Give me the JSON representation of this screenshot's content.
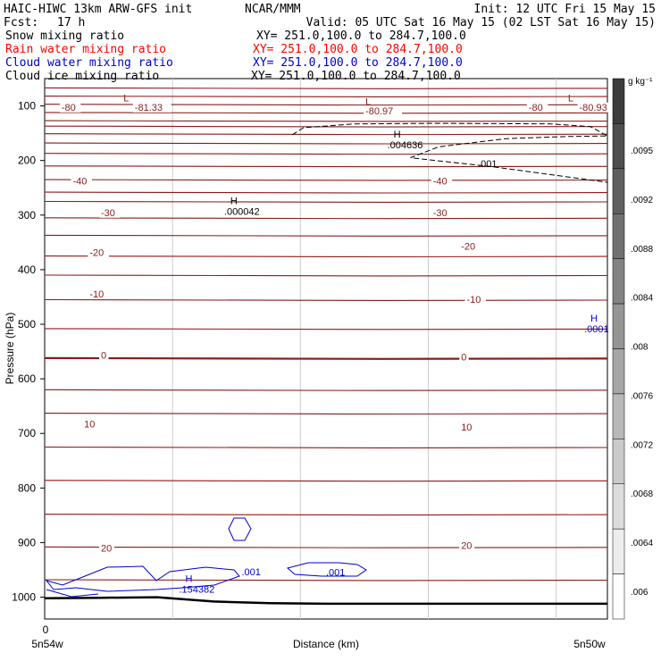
{
  "header": {
    "model": "HAIC-HIWC 13km ARW-GFS init",
    "org": "NCAR/MMM",
    "init": "Init: 12 UTC Fri 15 May 15",
    "fcst_label": "Fcst:",
    "fcst_value": "17 h",
    "valid": "Valid: 05 UTC Sat 16 May 15 (02 LST Sat 16 May 15)"
  },
  "legend": [
    {
      "label": "Snow mixing ratio",
      "range": "XY= 251.0,100.0 to 284.7,100.0",
      "color": "#000000"
    },
    {
      "label": "Rain water mixing ratio",
      "range": "XY= 251.0,100.0 to 284.7,100.0",
      "color": "#ff0000"
    },
    {
      "label": "Cloud water mixing ratio",
      "range": "XY= 251.0,100.0 to 284.7,100.0",
      "color": "#0000cc"
    },
    {
      "label": "Cloud ice mixing ratio",
      "range": "XY= 251.0,100.0 to 284.7,100.0",
      "color": "#000000"
    }
  ],
  "colors": {
    "temperature_contour": "#8b1a1a",
    "cloud_water": "#0000cc",
    "snow": "#000000",
    "terrain": "#000000"
  },
  "colorbar": {
    "unit": "g kg⁻¹",
    "labels": [
      ".0095",
      ".0092",
      ".0088",
      ".0084",
      ".008",
      ".0076",
      ".0072",
      ".0068",
      ".0064",
      ".006"
    ]
  },
  "chart_data": {
    "type": "line",
    "title": "",
    "xlabel": "Distance (km)",
    "ylabel": "Pressure (hPa)",
    "x_ticks": [
      "0"
    ],
    "x_endpoints": [
      "5n54w",
      "5n50w"
    ],
    "y_ticks": [
      "100",
      "200",
      "300",
      "400",
      "500",
      "600",
      "700",
      "800",
      "900",
      "1000"
    ],
    "ylim": [
      1040,
      50
    ],
    "isotherm_pressures": [
      67,
      82,
      97,
      112,
      127,
      137,
      151,
      168,
      187,
      210,
      235,
      258,
      275,
      305,
      337,
      375,
      410,
      455,
      508,
      562,
      620,
      663,
      725,
      786,
      848,
      908,
      968
    ],
    "isotherm_labels": [
      {
        "text": "-80",
        "x": 0.03,
        "p": 107
      },
      {
        "text": "-81.33",
        "x": 0.16,
        "p": 107
      },
      {
        "text": "-80.97",
        "x": 0.57,
        "p": 114
      },
      {
        "text": "-80",
        "x": 0.86,
        "p": 107
      },
      {
        "text": "-80.93",
        "x": 0.95,
        "p": 107
      },
      {
        "text": "-40",
        "x": 0.05,
        "p": 242
      },
      {
        "text": "-40",
        "x": 0.69,
        "p": 242
      },
      {
        "text": "-30",
        "x": 0.1,
        "p": 300
      },
      {
        "text": "-30",
        "x": 0.69,
        "p": 300
      },
      {
        "text": "-20",
        "x": 0.08,
        "p": 373
      },
      {
        "text": "-20",
        "x": 0.74,
        "p": 362
      },
      {
        "text": "-10",
        "x": 0.08,
        "p": 449
      },
      {
        "text": "-10",
        "x": 0.75,
        "p": 459
      },
      {
        "text": "0",
        "x": 0.1,
        "p": 561
      },
      {
        "text": "0",
        "x": 0.74,
        "p": 565
      },
      {
        "text": "10",
        "x": 0.07,
        "p": 687
      },
      {
        "text": "10",
        "x": 0.74,
        "p": 693
      },
      {
        "text": "20",
        "x": 0.1,
        "p": 915
      },
      {
        "text": "20",
        "x": 0.74,
        "p": 910
      }
    ],
    "extrema": [
      {
        "kind": "L",
        "x": 0.14,
        "p": 92,
        "series": "temperature"
      },
      {
        "kind": "L",
        "x": 0.57,
        "p": 98,
        "series": "temperature"
      },
      {
        "kind": "L",
        "x": 0.93,
        "p": 92,
        "series": "temperature"
      },
      {
        "kind": "H",
        "value": ".004636",
        "x": 0.62,
        "p": 158,
        "series": "snow"
      },
      {
        "kind": "H",
        "value": ".000042",
        "x": 0.33,
        "p": 280,
        "series": "snow"
      },
      {
        "kind": "H",
        "value": ".0001",
        "x": 0.97,
        "p": 495,
        "series": "cloud_water"
      },
      {
        "kind": "H",
        "value": ".154382",
        "x": 0.25,
        "p": 972,
        "series": "cloud_water"
      }
    ],
    "contour_labels": [
      {
        "text": ".001",
        "x": 0.77,
        "p": 212,
        "series": "snow"
      },
      {
        "text": ".001",
        "x": 0.35,
        "p": 960,
        "series": "cloud_water"
      },
      {
        "text": ".001",
        "x": 0.5,
        "p": 961,
        "series": "cloud_water"
      }
    ],
    "snow_contour": [
      [
        0.44,
        153
      ],
      [
        0.46,
        140
      ],
      [
        0.55,
        133
      ],
      [
        0.7,
        132
      ],
      [
        0.9,
        133
      ],
      [
        0.97,
        138
      ],
      [
        1.0,
        155
      ],
      [
        0.93,
        156
      ],
      [
        0.82,
        160
      ],
      [
        0.7,
        175
      ],
      [
        0.65,
        195
      ],
      [
        0.8,
        212
      ],
      [
        1.0,
        240
      ]
    ],
    "terrain": [
      [
        0.0,
        1002
      ],
      [
        0.1,
        1001
      ],
      [
        0.2,
        1000
      ],
      [
        0.3,
        1008
      ],
      [
        0.4,
        1011
      ],
      [
        0.5,
        1012
      ],
      [
        0.6,
        1012
      ],
      [
        0.7,
        1012
      ],
      [
        0.8,
        1012
      ],
      [
        0.9,
        1012
      ],
      [
        1.0,
        1012
      ]
    ]
  }
}
